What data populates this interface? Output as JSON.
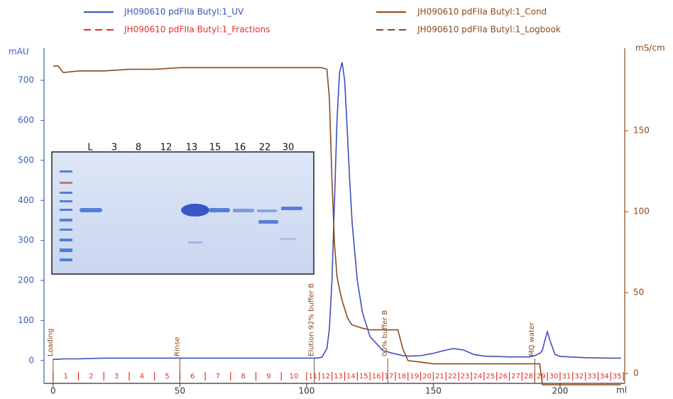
{
  "chart_data": {
    "type": "line",
    "x_label": "ml",
    "y_label": "mAU",
    "y2_label": "mS/cm",
    "xlim": [
      -3.6,
      225.5
    ],
    "xticks": [
      0,
      50,
      100,
      150,
      200
    ],
    "ylim": [
      -66,
      780
    ],
    "yticks": [
      0,
      100,
      200,
      300,
      400,
      500,
      600,
      700
    ],
    "y2lim": [
      -8.3,
      201
    ],
    "y2ticks": [
      0,
      50,
      100,
      150
    ],
    "x": [
      0,
      2,
      4,
      10,
      20,
      30,
      40,
      50,
      60,
      70,
      80,
      90,
      100,
      104,
      106,
      108,
      109,
      110,
      111,
      112,
      113,
      114,
      115,
      116,
      117,
      118,
      120,
      122,
      125,
      130,
      134,
      136,
      138,
      140,
      145,
      150,
      155,
      158,
      162,
      166,
      170,
      180,
      188,
      190,
      192,
      193,
      194,
      195,
      196,
      198,
      200,
      210,
      220,
      224
    ],
    "series": [
      {
        "name": "JH090610 pdFIIa Butyl:1_UV",
        "color": "#3d4fb5",
        "axis": "y",
        "values": [
          3,
          3,
          4,
          4,
          6,
          6,
          6,
          6,
          6,
          6,
          6,
          6,
          6,
          6,
          8,
          30,
          80,
          200,
          400,
          600,
          720,
          745,
          700,
          580,
          450,
          340,
          200,
          120,
          60,
          25,
          18,
          15,
          12,
          11,
          12,
          18,
          26,
          30,
          26,
          15,
          11,
          9,
          9,
          12,
          18,
          25,
          50,
          72,
          50,
          15,
          10,
          7,
          6,
          6
        ]
      },
      {
        "name": "JH090610 pdFIIa Butyl:1_Cond",
        "color": "#8b4a1c",
        "axis": "y2",
        "values": [
          190,
          190,
          186,
          187,
          187,
          188,
          188,
          189,
          189,
          189,
          189,
          189,
          189,
          189,
          189,
          188,
          170,
          120,
          80,
          60,
          52,
          45,
          40,
          35,
          32,
          30,
          29,
          28,
          27,
          27,
          27,
          27,
          15,
          8,
          7,
          6,
          6,
          6,
          6,
          6,
          6,
          6,
          6,
          6,
          6,
          -7,
          -7,
          -7,
          -7,
          -7,
          -7,
          -7,
          -7,
          -7
        ]
      }
    ],
    "fractions": {
      "name": "JH090610 pdFIIa Butyl:1_Fractions",
      "color": "#e0302a",
      "edges": [
        0,
        10,
        20,
        30,
        40,
        50,
        60,
        70,
        80,
        90,
        100,
        105,
        110,
        115,
        120,
        125,
        130,
        135,
        140,
        145,
        150,
        155,
        160,
        165,
        170,
        175,
        180,
        185,
        190,
        195,
        200,
        205,
        210,
        215,
        220,
        225
      ],
      "labels": [
        "1",
        "2",
        "3",
        "4",
        "5",
        "6",
        "7",
        "8",
        "9",
        "10",
        "11",
        "12",
        "13",
        "14",
        "15",
        "16",
        "17",
        "18",
        "19",
        "20",
        "21",
        "22",
        "23",
        "24",
        "25",
        "26",
        "27",
        "28",
        "29",
        "30",
        "31",
        "32",
        "33",
        "34",
        "35"
      ]
    },
    "logbook": {
      "name": "JH090610 pdFIIa Butyl:1_Logbook",
      "color": "#8b4a1c",
      "x": [
        0,
        50,
        103,
        132,
        190
      ],
      "labels": [
        "Loading",
        "Rinse",
        "Elution 92% buffer B",
        "00% buffer B",
        "MQ water"
      ]
    },
    "gel": {
      "lane_labels": [
        "L",
        "3",
        "8",
        "12",
        "13",
        "15",
        "16",
        "22",
        "30"
      ]
    }
  }
}
